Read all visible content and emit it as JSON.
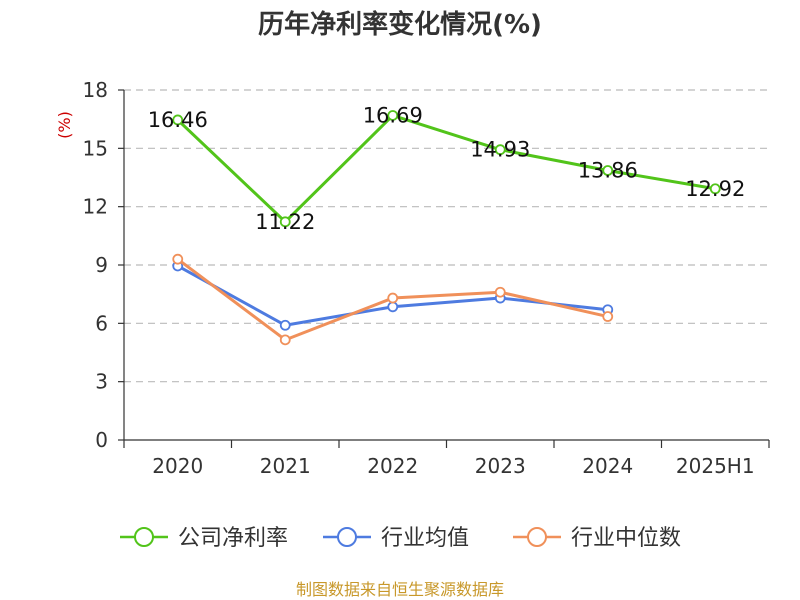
{
  "chart_data": {
    "type": "line",
    "title": "历年净利率变化情况(%)",
    "ylabel": "(%)",
    "categories": [
      "2020",
      "2021",
      "2022",
      "2023",
      "2024",
      "2025H1"
    ],
    "ylim": [
      0,
      18
    ],
    "yticks": [
      0,
      3,
      6,
      9,
      12,
      15,
      18
    ],
    "grid": true,
    "legend_position": "bottom",
    "series": [
      {
        "name": "公司净利率",
        "color": "#52c41a",
        "show_labels": true,
        "values": [
          16.46,
          11.22,
          16.69,
          14.93,
          13.86,
          12.92
        ],
        "labels": [
          "16.46",
          "11.22",
          "16.69",
          "14.93",
          "13.86",
          "12.92"
        ]
      },
      {
        "name": "行业均值",
        "color": "#4e7be0",
        "show_labels": false,
        "values": [
          8.95,
          5.9,
          6.85,
          7.3,
          6.7,
          null
        ]
      },
      {
        "name": "行业中位数",
        "color": "#f0905a",
        "show_labels": false,
        "values": [
          9.3,
          5.15,
          7.3,
          7.6,
          6.35,
          null
        ]
      }
    ]
  },
  "footer": "制图数据来自恒生聚源数据库"
}
